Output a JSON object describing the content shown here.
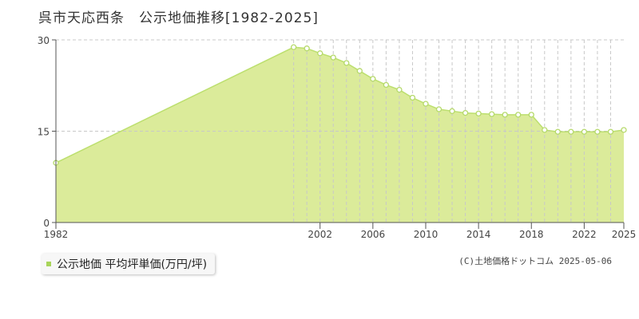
{
  "page_title": "呉市天応西条　公示地価推移[1982-2025]",
  "legend": {
    "label": "公示地価 平均坪単価(万円/坪)"
  },
  "credit": "(C)土地価格ドットコム 2025-05-06",
  "colors": {
    "fill": "#dbeb9a",
    "line": "#bcdf6e",
    "marker_fill": "#ffffff",
    "marker_stroke": "#b5d96a",
    "legend_swatch": "#a8d45a",
    "grid": "#c8c8c8",
    "axis": "#555555"
  },
  "chart_data": {
    "type": "area",
    "title": "",
    "xlabel": "",
    "ylabel": "",
    "ylim": [
      0,
      30
    ],
    "yticks": [
      0,
      15,
      30
    ],
    "xlim": [
      1982,
      2025
    ],
    "xtick_labels": [
      "1982",
      "2002",
      "2006",
      "2010",
      "2014",
      "2018",
      "2022",
      "2025"
    ],
    "grid": true,
    "series": [
      {
        "name": "公示地価 平均坪単価(万円/坪)",
        "x": [
          1982,
          2000,
          2001,
          2002,
          2003,
          2004,
          2005,
          2006,
          2007,
          2008,
          2009,
          2010,
          2011,
          2012,
          2013,
          2014,
          2015,
          2016,
          2017,
          2018,
          2019,
          2020,
          2021,
          2022,
          2023,
          2024,
          2025
        ],
        "values": [
          9.8,
          28.8,
          28.6,
          27.8,
          27.1,
          26.2,
          24.9,
          23.6,
          22.6,
          21.8,
          20.5,
          19.5,
          18.6,
          18.3,
          18.0,
          17.9,
          17.8,
          17.7,
          17.7,
          17.7,
          15.2,
          14.9,
          14.9,
          14.9,
          14.9,
          14.9,
          15.2
        ]
      }
    ]
  }
}
